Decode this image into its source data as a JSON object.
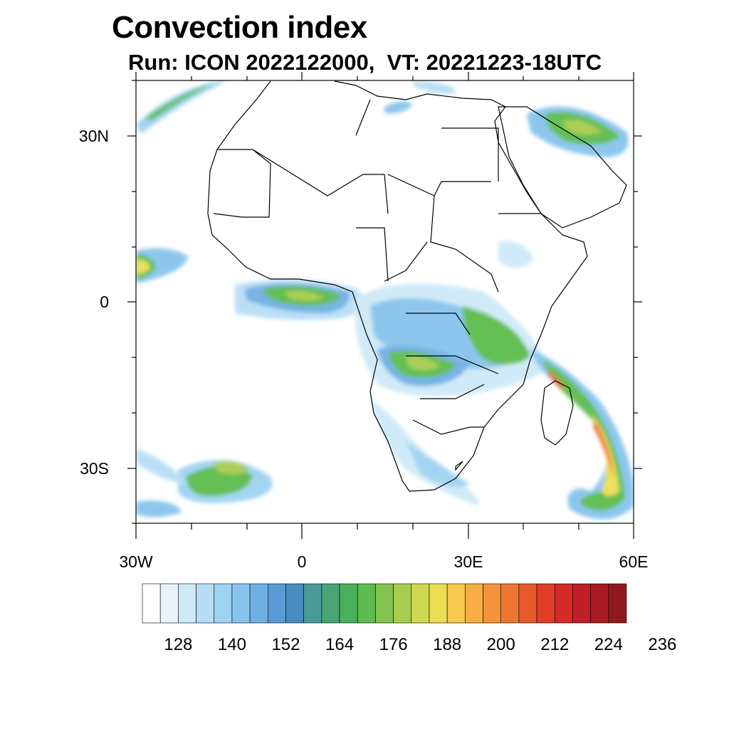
{
  "title": "Convection index",
  "subtitle": "Run: ICON 2022122000,  VT: 20221223-18UTC",
  "map": {
    "lat_labels": [
      "30N",
      "0",
      "30S"
    ],
    "lon_labels": [
      "30W",
      "0",
      "30E",
      "60E"
    ],
    "lon_range_deg": [
      -30,
      60
    ],
    "lat_range_deg": [
      -40,
      40
    ]
  },
  "colorbar": {
    "colors": [
      "#ffffff",
      "#e8f4fc",
      "#cfe9f8",
      "#b7def5",
      "#9fd3f2",
      "#87c4ec",
      "#6fb0e3",
      "#5b9bd5",
      "#4a8cc2",
      "#4b9a9a",
      "#4aa378",
      "#4bb05a",
      "#5cbc4c",
      "#82c44d",
      "#a8cc4f",
      "#cfd851",
      "#ecde55",
      "#f7c84e",
      "#f6ae45",
      "#f3933c",
      "#ee7634",
      "#e85a2d",
      "#e03e28",
      "#d62a28",
      "#c01f27",
      "#a91a22",
      "#8e1a1f"
    ],
    "tick_labels": [
      "128",
      "140",
      "152",
      "164",
      "176",
      "188",
      "200",
      "212",
      "224",
      "236"
    ]
  }
}
